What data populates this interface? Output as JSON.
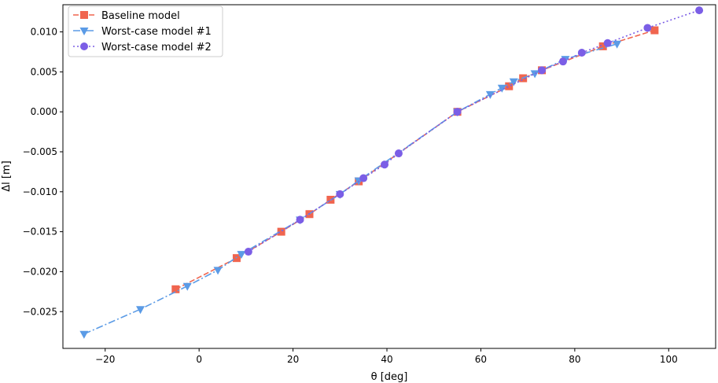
{
  "chart_data": {
    "type": "line",
    "xlabel": "θ [deg]",
    "ylabel": "Δl [m]",
    "xlim": [
      -29,
      110
    ],
    "ylim": [
      -0.0296,
      0.0134
    ],
    "xticks": [
      -20,
      0,
      20,
      40,
      60,
      80,
      100
    ],
    "yticks": [
      -0.025,
      -0.02,
      -0.015,
      -0.01,
      -0.005,
      0.0,
      0.005,
      0.01
    ],
    "xtick_labels": [
      "−20",
      "0",
      "20",
      "40",
      "60",
      "80",
      "100"
    ],
    "ytick_labels": [
      "−0.025",
      "−0.020",
      "−0.015",
      "−0.010",
      "−0.005",
      "0.000",
      "0.005",
      "0.010"
    ],
    "grid": false,
    "legend_position": "top-left",
    "series": [
      {
        "name": "Baseline model",
        "color": "#f0654f",
        "line_style": "dashed",
        "marker": "square",
        "x": [
          -5,
          8,
          17.5,
          23.5,
          28,
          34,
          55,
          66,
          69,
          73,
          86,
          97
        ],
        "y": [
          -0.0222,
          -0.0183,
          -0.015,
          -0.0128,
          -0.011,
          -0.0087,
          0.0,
          0.0032,
          0.0042,
          0.0052,
          0.0082,
          0.0102
        ]
      },
      {
        "name": "Worst-case model #1",
        "color": "#5b9be6",
        "line_style": "dashdot",
        "marker": "triangle-down",
        "x": [
          -24.5,
          -12.5,
          -2.5,
          4,
          9,
          21.5,
          30,
          34,
          55,
          62,
          64.5,
          67,
          71.5,
          78,
          89
        ],
        "y": [
          -0.0278,
          -0.0247,
          -0.0218,
          -0.0198,
          -0.0178,
          -0.0135,
          -0.0103,
          -0.0086,
          0.0,
          0.0022,
          0.003,
          0.0038,
          0.0048,
          0.0066,
          0.0085
        ]
      },
      {
        "name": "Worst-case model #2",
        "color": "#7b5ee6",
        "line_style": "dotted",
        "marker": "circle",
        "x": [
          10.5,
          21.5,
          30,
          35,
          39.5,
          42.5,
          55,
          73,
          77.5,
          81.5,
          87,
          95.5,
          106.5
        ],
        "y": [
          -0.0175,
          -0.0135,
          -0.0103,
          -0.0083,
          -0.0066,
          -0.0052,
          0.0,
          0.0052,
          0.0063,
          0.0074,
          0.0086,
          0.0105,
          0.0127
        ]
      }
    ]
  }
}
